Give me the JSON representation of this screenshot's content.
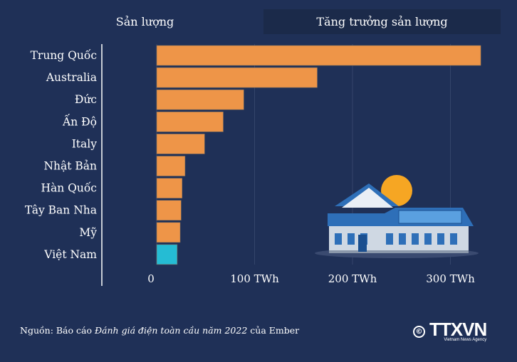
{
  "tabs": [
    {
      "label": "Sản lượng",
      "active": true
    },
    {
      "label": "Tăng trưởng sản lượng",
      "active": false
    }
  ],
  "chart_data": {
    "type": "bar",
    "orientation": "horizontal",
    "categories": [
      "Trung Quốc",
      "Australia",
      "Đức",
      "Ấn Độ",
      "Italy",
      "Nhật Bản",
      "Hàn Quốc",
      "Tây Ban Nha",
      "Mỹ",
      "Việt Nam"
    ],
    "values": [
      331,
      164,
      89,
      68,
      49,
      29,
      26,
      25,
      24,
      21
    ],
    "unit": "TWh",
    "xlim": [
      0,
      340
    ],
    "ticks": [
      0,
      100,
      200,
      300
    ],
    "tick_labels": [
      "0",
      "100 TWh",
      "200 TWh",
      "300 TWh"
    ],
    "grid": true,
    "colors": {
      "default": "#ee9548",
      "highlight": "#25bcd4"
    },
    "highlight": "Việt Nam"
  },
  "source": {
    "prefix": "Nguồn: Báo cáo ",
    "italic": "Đánh giá điện toàn cầu năm 2022",
    "suffix": " của Ember"
  },
  "logo": {
    "copyright": "©",
    "name": "TTXVN",
    "subtitle": "Vietnam News Agency"
  }
}
